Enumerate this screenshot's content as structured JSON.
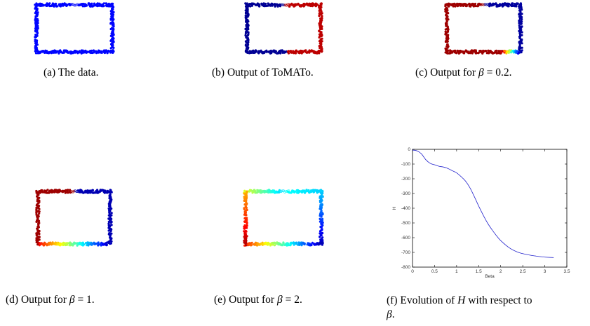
{
  "figures": [
    {
      "id": "a",
      "caption_prefix": "(a)  The data.",
      "caption_math": "",
      "caption_suffix": "",
      "colors": "uniform-blue"
    },
    {
      "id": "b",
      "caption_prefix": "(b)  Output of ToMATo.",
      "caption_math": "",
      "caption_suffix": "",
      "colors": "tomato"
    },
    {
      "id": "c",
      "caption_prefix": "(c)  Output for ",
      "caption_math": "β",
      "caption_suffix": " = 0.2.",
      "colors": "beta02"
    },
    {
      "id": "d",
      "caption_prefix": "(d)  Output for ",
      "caption_math": "β",
      "caption_suffix": " = 1.",
      "colors": "beta1"
    },
    {
      "id": "e",
      "caption_prefix": "(e)  Output for ",
      "caption_math": "β",
      "caption_suffix": " = 2.",
      "colors": "beta2"
    },
    {
      "id": "f",
      "caption_line1_prefix": "(f)  Evolution of ",
      "caption_line1_math": "H",
      "caption_line1_suffix": " with respect to",
      "caption_line2_math": "β",
      "caption_line2_suffix": "."
    }
  ],
  "chart_data": {
    "type": "line",
    "title": "",
    "xlabel": "Beta",
    "ylabel": "H",
    "xlim": [
      0,
      3.5
    ],
    "ylim": [
      -800,
      0
    ],
    "xticks": [
      0,
      0.5,
      1,
      1.5,
      2,
      2.5,
      3,
      3.5
    ],
    "xtick_labels": [
      "0",
      "0.5",
      "1",
      "1.5",
      "2",
      "2.5",
      "3",
      "3.5"
    ],
    "yticks": [
      0,
      -100,
      -200,
      -300,
      -400,
      -500,
      -600,
      -700,
      -800
    ],
    "ytick_labels": [
      "0",
      "-100",
      "-200",
      "-300",
      "-400",
      "-500",
      "-600",
      "-700",
      "-800"
    ],
    "line_color": "#2222cc",
    "series": [
      {
        "x": [
          0,
          0.1,
          0.2,
          0.3,
          0.4,
          0.5,
          0.6,
          0.7,
          0.8,
          0.9,
          1.0,
          1.1,
          1.2,
          1.3,
          1.4,
          1.5,
          1.6,
          1.7,
          1.8,
          1.9,
          2.0,
          2.2,
          2.4,
          2.6,
          2.8,
          3.0,
          3.2
        ],
        "y": [
          -5,
          -10,
          -30,
          -70,
          -95,
          -105,
          -115,
          -120,
          -130,
          -145,
          -160,
          -185,
          -215,
          -260,
          -320,
          -385,
          -445,
          -500,
          -545,
          -585,
          -620,
          -670,
          -700,
          -715,
          -725,
          -732,
          -735
        ]
      }
    ]
  }
}
